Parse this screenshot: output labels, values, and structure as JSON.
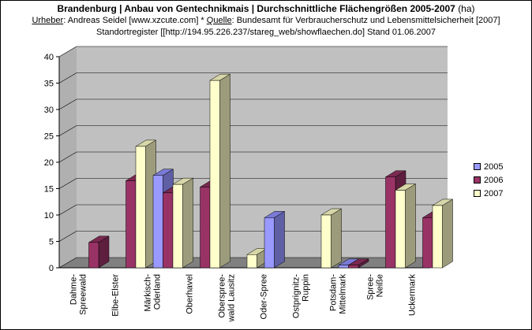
{
  "header": {
    "title": "Brandenburg | Anbau von Gentechnikmais | Durchschnittliche Flächengrößen  2005-2007",
    "title_unit": "(ha)",
    "author_label": "Urheber",
    "author_text": ":  Andreas Seidel [www.xzcute.com]  *  ",
    "source_label": "Quelle",
    "source_text": ": Bundesamt für Verbraucherschutz und Lebensmittelsicherheit [2007]",
    "line3": "Standortregister [[http://194.95.226.237/stareg_web/showflaechen.do]  Stand 01.06.2007"
  },
  "chart_data": {
    "type": "bar",
    "categories": [
      "Dahme-Spreewald",
      "Elbe-Elster",
      "Märkisch-Oderland",
      "Oberhavel",
      "Oberspree-wald Lausitz",
      "Oder-Spree",
      "Ostprignitz-Ruppin",
      "Potsdam-Mittelmark",
      "Spree-Neiße",
      "Uckermark"
    ],
    "category_labels": [
      [
        "Dahme-",
        "Spreewald"
      ],
      [
        "Elbe-Elster"
      ],
      [
        "Märkisch-",
        "Oderland"
      ],
      [
        "Oberhavel"
      ],
      [
        "Oberspree-",
        "wald Lausitz"
      ],
      [
        "Oder-Spree"
      ],
      [
        "Ostprignitz-",
        "Ruppin"
      ],
      [
        "Potsdam-",
        "Mittelmark"
      ],
      [
        "Spree-",
        "Neiße"
      ],
      [
        "Uckermark"
      ]
    ],
    "series": [
      {
        "name": "2005",
        "values": [
          null,
          null,
          17.5,
          null,
          null,
          9.5,
          null,
          0.5,
          null,
          null
        ]
      },
      {
        "name": "2006",
        "values": [
          4.8,
          16.5,
          14.2,
          15.3,
          null,
          null,
          null,
          0.5,
          17.2,
          9.5
        ]
      },
      {
        "name": "2007",
        "values": [
          null,
          23.0,
          15.8,
          35.5,
          2.5,
          null,
          10.0,
          null,
          14.7,
          11.8
        ]
      }
    ],
    "colors": {
      "2005": {
        "front": "#9999ff",
        "side": "#5f5fa6",
        "top": "#7a7ad6"
      },
      "2006": {
        "front": "#993366",
        "side": "#5e1f3f",
        "top": "#7a2950"
      },
      "2007": {
        "front": "#ffffcc",
        "side": "#9c9c7c",
        "top": "#d6d6a8"
      }
    },
    "wall_color": "#c0c0c0",
    "floor_color": "#808080",
    "ylim": [
      0,
      40
    ],
    "yticks": [
      0,
      5,
      10,
      15,
      20,
      25,
      30,
      35,
      40
    ],
    "grid": true,
    "legend_position": "right"
  }
}
